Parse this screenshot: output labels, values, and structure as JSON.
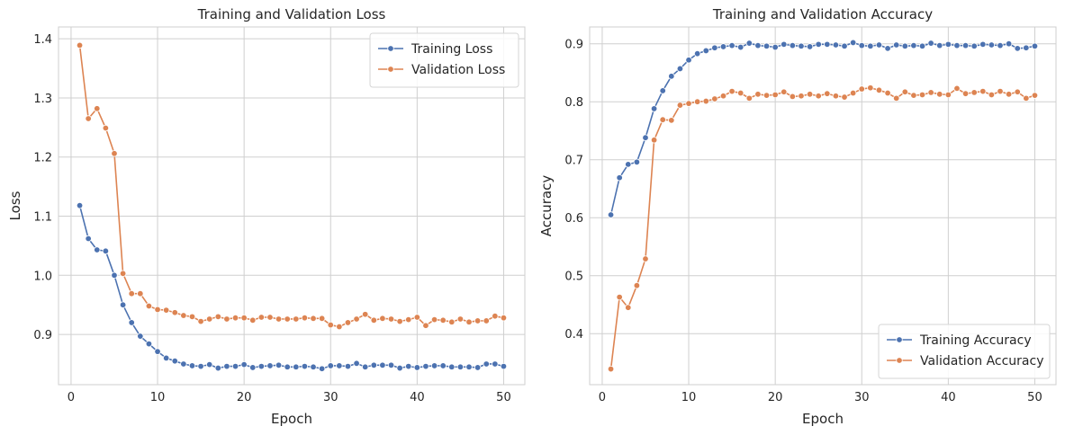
{
  "chart_data": [
    {
      "type": "line",
      "title": "Training and Validation Loss",
      "xlabel": "Epoch",
      "ylabel": "Loss",
      "xlim": [
        -1.45,
        52.45
      ],
      "ylim": [
        0.815,
        1.42
      ],
      "xticks": [
        0,
        10,
        20,
        30,
        40,
        50
      ],
      "yticks": [
        0.9,
        1.0,
        1.1,
        1.2,
        1.3,
        1.4
      ],
      "ytick_labels": [
        "0.9",
        "1.0",
        "1.1",
        "1.2",
        "1.3",
        "1.4"
      ],
      "grid": true,
      "legend": "upper right",
      "x": [
        1,
        2,
        3,
        4,
        5,
        6,
        7,
        8,
        9,
        10,
        11,
        12,
        13,
        14,
        15,
        16,
        17,
        18,
        19,
        20,
        21,
        22,
        23,
        24,
        25,
        26,
        27,
        28,
        29,
        30,
        31,
        32,
        33,
        34,
        35,
        36,
        37,
        38,
        39,
        40,
        41,
        42,
        43,
        44,
        45,
        46,
        47,
        48,
        49,
        50
      ],
      "series": [
        {
          "name": "Training Loss",
          "color": "#4c72b0",
          "values": [
            1.118,
            1.062,
            1.043,
            1.041,
            1.0,
            0.95,
            0.92,
            0.897,
            0.884,
            0.871,
            0.86,
            0.855,
            0.85,
            0.847,
            0.846,
            0.849,
            0.843,
            0.846,
            0.846,
            0.849,
            0.844,
            0.846,
            0.847,
            0.848,
            0.845,
            0.845,
            0.846,
            0.845,
            0.842,
            0.847,
            0.847,
            0.846,
            0.851,
            0.845,
            0.848,
            0.848,
            0.848,
            0.843,
            0.846,
            0.844,
            0.846,
            0.847,
            0.847,
            0.845,
            0.845,
            0.845,
            0.844,
            0.85,
            0.85,
            0.846
          ]
        },
        {
          "name": "Validation Loss",
          "color": "#dd8452",
          "values": [
            1.389,
            1.265,
            1.282,
            1.249,
            1.206,
            1.003,
            0.969,
            0.969,
            0.948,
            0.942,
            0.941,
            0.937,
            0.932,
            0.93,
            0.922,
            0.926,
            0.93,
            0.926,
            0.928,
            0.928,
            0.924,
            0.929,
            0.929,
            0.926,
            0.926,
            0.926,
            0.928,
            0.927,
            0.927,
            0.916,
            0.913,
            0.92,
            0.926,
            0.934,
            0.924,
            0.927,
            0.926,
            0.922,
            0.925,
            0.929,
            0.915,
            0.925,
            0.924,
            0.921,
            0.926,
            0.921,
            0.923,
            0.923,
            0.931,
            0.928
          ]
        }
      ]
    },
    {
      "type": "line",
      "title": "Training and Validation Accuracy",
      "xlabel": "Epoch",
      "ylabel": "Accuracy",
      "xlim": [
        -1.45,
        52.45
      ],
      "ylim": [
        0.312,
        0.929
      ],
      "xticks": [
        0,
        10,
        20,
        30,
        40,
        50
      ],
      "yticks": [
        0.4,
        0.5,
        0.6,
        0.7,
        0.8,
        0.9
      ],
      "ytick_labels": [
        "0.4",
        "0.5",
        "0.6",
        "0.7",
        "0.8",
        "0.9"
      ],
      "grid": true,
      "legend": "lower right",
      "x": [
        1,
        2,
        3,
        4,
        5,
        6,
        7,
        8,
        9,
        10,
        11,
        12,
        13,
        14,
        15,
        16,
        17,
        18,
        19,
        20,
        21,
        22,
        23,
        24,
        25,
        26,
        27,
        28,
        29,
        30,
        31,
        32,
        33,
        34,
        35,
        36,
        37,
        38,
        39,
        40,
        41,
        42,
        43,
        44,
        45,
        46,
        47,
        48,
        49,
        50
      ],
      "series": [
        {
          "name": "Training Accuracy",
          "color": "#4c72b0",
          "values": [
            0.605,
            0.669,
            0.692,
            0.696,
            0.738,
            0.788,
            0.819,
            0.844,
            0.857,
            0.872,
            0.883,
            0.888,
            0.893,
            0.895,
            0.897,
            0.894,
            0.901,
            0.897,
            0.896,
            0.894,
            0.899,
            0.897,
            0.896,
            0.895,
            0.899,
            0.899,
            0.898,
            0.896,
            0.902,
            0.897,
            0.896,
            0.898,
            0.892,
            0.898,
            0.896,
            0.897,
            0.896,
            0.901,
            0.897,
            0.899,
            0.897,
            0.897,
            0.896,
            0.899,
            0.898,
            0.897,
            0.9,
            0.892,
            0.893,
            0.896
          ]
        },
        {
          "name": "Validation Accuracy",
          "color": "#dd8452",
          "values": [
            0.339,
            0.463,
            0.445,
            0.483,
            0.529,
            0.734,
            0.769,
            0.768,
            0.794,
            0.797,
            0.8,
            0.801,
            0.805,
            0.81,
            0.818,
            0.815,
            0.806,
            0.813,
            0.811,
            0.812,
            0.817,
            0.809,
            0.81,
            0.813,
            0.81,
            0.814,
            0.81,
            0.808,
            0.815,
            0.822,
            0.824,
            0.82,
            0.815,
            0.806,
            0.817,
            0.811,
            0.812,
            0.816,
            0.813,
            0.812,
            0.823,
            0.814,
            0.816,
            0.818,
            0.812,
            0.818,
            0.813,
            0.817,
            0.806,
            0.811
          ]
        }
      ]
    }
  ]
}
